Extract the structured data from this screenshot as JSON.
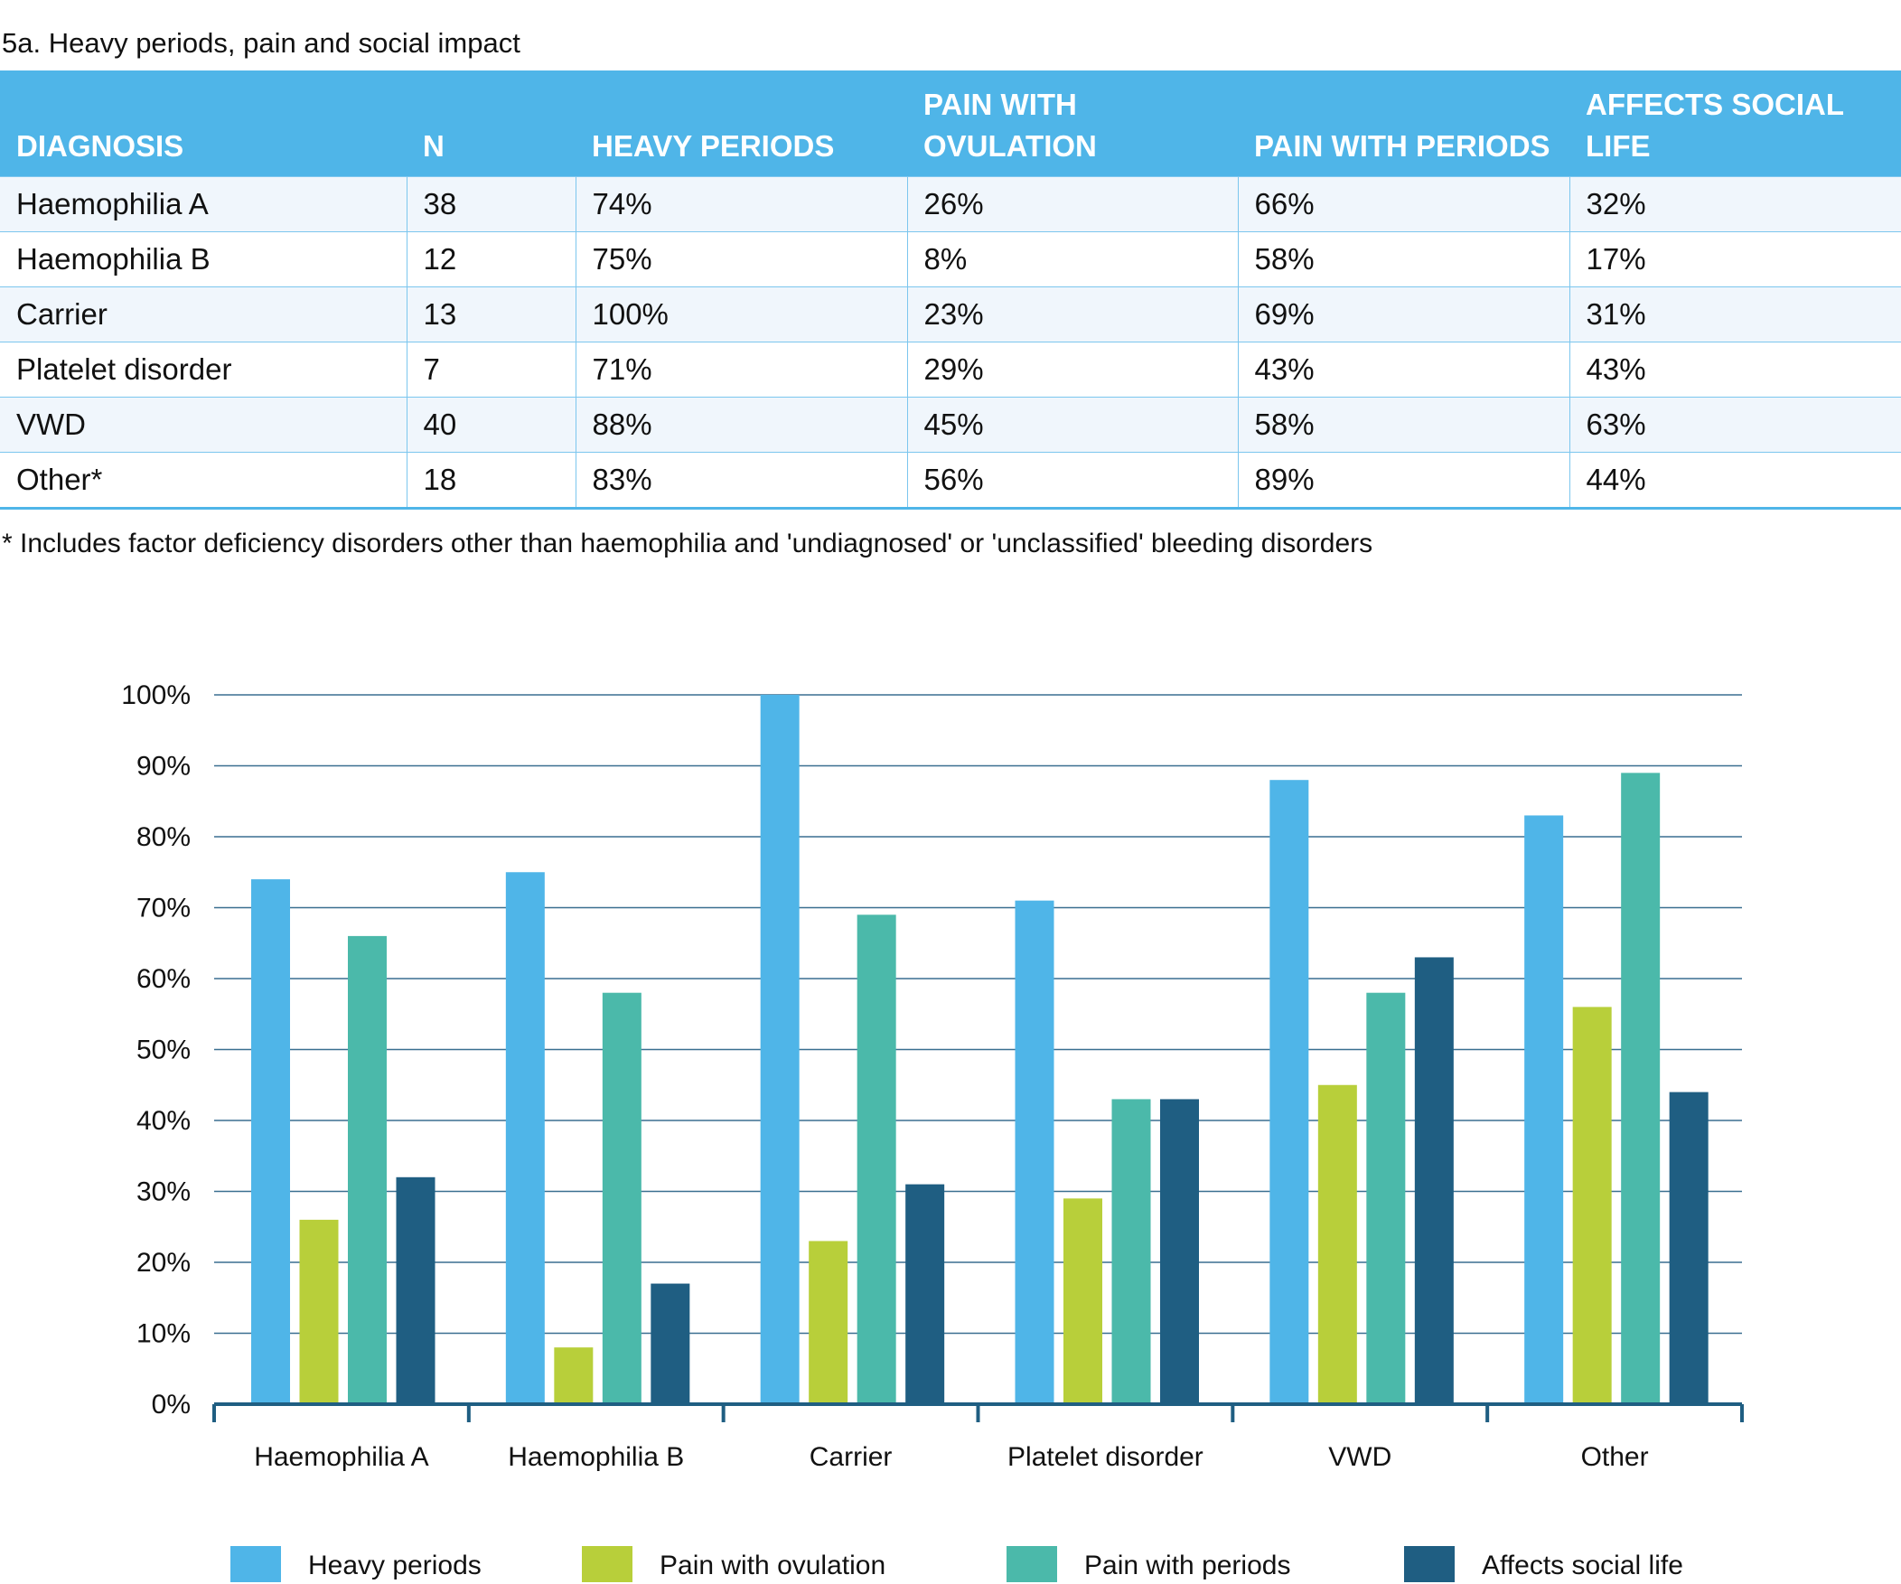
{
  "title": "5a. Heavy periods, pain and social impact",
  "table": {
    "headers": [
      "DIAGNOSIS",
      "N",
      "HEAVY PERIODS",
      "PAIN WITH OVULATION",
      "PAIN WITH PERIODS",
      "AFFECTS SOCIAL LIFE"
    ],
    "rows": [
      [
        "Haemophilia A",
        "38",
        "74%",
        "26%",
        "66%",
        "32%"
      ],
      [
        "Haemophilia B",
        "12",
        "75%",
        "8%",
        "58%",
        "17%"
      ],
      [
        "Carrier",
        "13",
        "100%",
        "23%",
        "69%",
        "31%"
      ],
      [
        "Platelet disorder",
        "7",
        "71%",
        "29%",
        "43%",
        "43%"
      ],
      [
        "VWD",
        "40",
        "88%",
        "45%",
        "58%",
        "63%"
      ],
      [
        "Other*",
        "18",
        "83%",
        "56%",
        "89%",
        "44%"
      ]
    ]
  },
  "footnote": "* Includes factor deficiency disorders other than haemophilia and 'undiagnosed' or 'unclassified' bleeding disorders",
  "chart_data": {
    "type": "bar",
    "categories": [
      "Haemophilia A",
      "Haemophilia B",
      "Carrier",
      "Platelet disorder",
      "VWD",
      "Other"
    ],
    "series": [
      {
        "name": "Heavy periods",
        "color": "#4fb5e8",
        "values": [
          74,
          75,
          100,
          71,
          88,
          83
        ]
      },
      {
        "name": "Pain with ovulation",
        "color": "#b8cf3a",
        "values": [
          26,
          8,
          23,
          29,
          45,
          56
        ]
      },
      {
        "name": "Pain with periods",
        "color": "#4bb9aa",
        "values": [
          66,
          58,
          69,
          43,
          58,
          89
        ]
      },
      {
        "name": "Affects social life",
        "color": "#1f5e82",
        "values": [
          32,
          17,
          31,
          43,
          63,
          44
        ]
      }
    ],
    "ylim": [
      0,
      100
    ],
    "yticks": [
      "0%",
      "10%",
      "20%",
      "30%",
      "40%",
      "50%",
      "60%",
      "70%",
      "80%",
      "90%",
      "100%"
    ],
    "grid": true,
    "legend": "bottom"
  }
}
